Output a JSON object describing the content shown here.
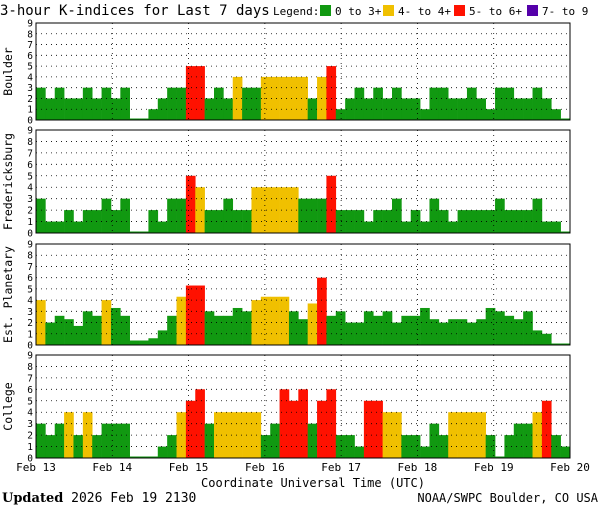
{
  "chart_data": {
    "type": "bar",
    "title": "3-hour K-indices for Last 7 days",
    "legend": {
      "label": "Legend:",
      "entries": [
        {
          "label": "0 to 3+",
          "color": "#119911"
        },
        {
          "label": "4- to 4+",
          "color": "#f0c000"
        },
        {
          "label": "5- to 6+",
          "color": "#ff1100"
        },
        {
          "label": "7- to 9",
          "color": "#5500aa"
        }
      ]
    },
    "xlabel": "Coordinate Universal Time (UTC)",
    "x_ticks": [
      "Feb 13",
      "Feb 14",
      "Feb 15",
      "Feb 16",
      "Feb 17",
      "Feb 18",
      "Feb 19",
      "Feb 20"
    ],
    "ylim": [
      0,
      9
    ],
    "y_ticks": [
      "0",
      "1",
      "2",
      "3",
      "4",
      "5",
      "6",
      "7",
      "8",
      "9"
    ],
    "grid": true,
    "series": [
      {
        "name": "Boulder",
        "values": [
          3,
          2,
          3,
          2,
          2,
          3,
          2,
          3,
          2,
          3,
          0,
          0,
          1,
          2,
          3,
          3,
          5,
          5,
          2,
          3,
          2,
          4,
          3,
          3,
          4,
          4,
          4,
          4,
          4,
          2,
          4,
          5,
          1,
          2,
          3,
          2,
          3,
          2,
          3,
          2,
          2,
          1,
          3,
          3,
          2,
          2,
          3,
          2,
          1,
          3,
          3,
          2,
          2,
          3,
          2,
          1,
          0
        ]
      },
      {
        "name": "Fredericksburg",
        "values": [
          3,
          1,
          1,
          2,
          1,
          2,
          2,
          3,
          2,
          3,
          0,
          0,
          2,
          1,
          3,
          3,
          5,
          4,
          2,
          2,
          3,
          2,
          2,
          4,
          4,
          4,
          4,
          4,
          3,
          3,
          3,
          5,
          2,
          2,
          2,
          1,
          2,
          2,
          3,
          1,
          2,
          1,
          3,
          2,
          1,
          2,
          2,
          2,
          2,
          3,
          2,
          2,
          2,
          3,
          1,
          1,
          0
        ]
      },
      {
        "name": "Est. Planetary",
        "values": [
          4,
          2,
          2.6,
          2.3,
          1.7,
          3,
          2.6,
          4,
          3.3,
          2.6,
          0.4,
          0.4,
          0.6,
          1.3,
          2.6,
          4.3,
          5.3,
          5.3,
          3,
          2.6,
          2.6,
          3.3,
          3,
          4,
          4.3,
          4.3,
          4.3,
          3,
          2.3,
          3.7,
          6,
          2.6,
          3,
          2,
          2,
          3,
          2.6,
          3,
          2,
          2.6,
          2.6,
          3.3,
          2.3,
          2,
          2.3,
          2.3,
          2,
          2.3,
          3.3,
          3,
          2.6,
          2.3,
          3,
          1.3,
          1,
          0,
          0
        ]
      },
      {
        "name": "College",
        "values": [
          3,
          2,
          3,
          4,
          2,
          4,
          2,
          3,
          3,
          3,
          0,
          0,
          0,
          1,
          2,
          4,
          5,
          6,
          3,
          4,
          4,
          4,
          4,
          4,
          2,
          3,
          6,
          5,
          6,
          3,
          5,
          6,
          2,
          2,
          1,
          5,
          5,
          4,
          4,
          2,
          2,
          1,
          3,
          2,
          4,
          4,
          4,
          4,
          2,
          0,
          2,
          3,
          3,
          4,
          5,
          2,
          1
        ]
      }
    ]
  },
  "footer": {
    "updated_label": "Updated",
    "updated_value": "2026 Feb 19 2130",
    "credit": "NOAA/SWPC Boulder, CO USA"
  }
}
